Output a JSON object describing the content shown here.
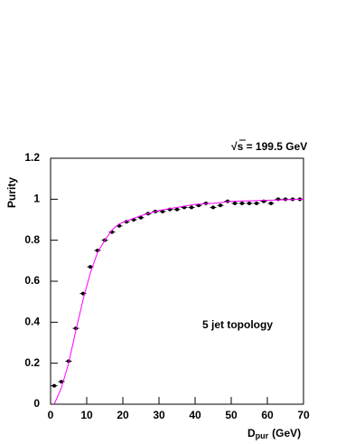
{
  "chart_data": {
    "type": "scatter",
    "ylabel": "Purity",
    "xlabel": "D",
    "xlabel_sub": "pur",
    "xlabel_unit": "(GeV)",
    "annotations": [
      "√s =  199.5  GeV",
      "5 jet topology"
    ],
    "xlim": [
      0,
      70
    ],
    "xticks": [
      0,
      10,
      20,
      30,
      40,
      50,
      60,
      70
    ],
    "ylim": [
      0,
      1.2
    ],
    "yticks": [
      0,
      0.2,
      0.4,
      0.6,
      0.8,
      1,
      1.2
    ],
    "series": [
      {
        "color": "#000000",
        "style": "points",
        "x": [
          1,
          3,
          5,
          7,
          9,
          11,
          13,
          15,
          17,
          19,
          21,
          23,
          25,
          27,
          29,
          31,
          33,
          35,
          37,
          39,
          41,
          43,
          45,
          47,
          49,
          51,
          53,
          55,
          57,
          59,
          61,
          63,
          65,
          67,
          69
        ],
        "values": [
          0.09,
          0.11,
          0.21,
          0.37,
          0.54,
          0.67,
          0.75,
          0.8,
          0.84,
          0.87,
          0.89,
          0.9,
          0.91,
          0.93,
          0.94,
          0.94,
          0.95,
          0.95,
          0.96,
          0.96,
          0.97,
          0.98,
          0.96,
          0.97,
          0.99,
          0.98,
          0.98,
          0.98,
          0.98,
          0.99,
          0.98,
          1,
          1,
          1,
          1
        ]
      },
      {
        "color": "#ff00ff",
        "style": "line",
        "x": [
          1,
          3,
          5,
          7,
          9,
          11,
          13,
          15,
          17,
          19,
          22,
          25,
          30,
          35,
          40,
          45,
          50,
          60,
          70
        ],
        "values": [
          0,
          0.08,
          0.2,
          0.36,
          0.51,
          0.64,
          0.74,
          0.8,
          0.85,
          0.88,
          0.9,
          0.92,
          0.945,
          0.96,
          0.975,
          0.98,
          0.99,
          0.995,
          1
        ]
      }
    ]
  }
}
